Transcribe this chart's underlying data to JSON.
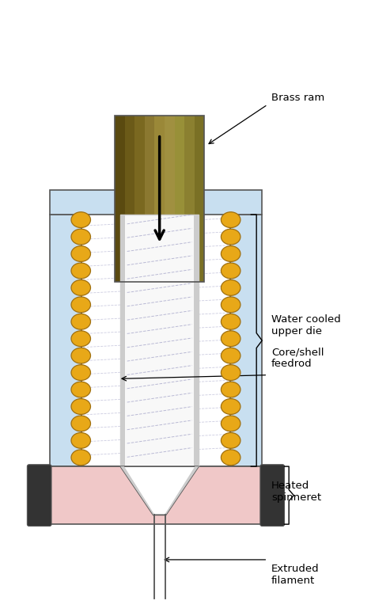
{
  "figure_width": 4.74,
  "figure_height": 7.73,
  "dpi": 100,
  "background_color": "#ffffff",
  "colors": {
    "light_blue": "#c8dff0",
    "brass_dark": "#6B5A1A",
    "brass_mid": "#8B7520",
    "brass_light": "#B09030",
    "gold_pellet": "#E8A818",
    "gold_pellet_edge": "#A07010",
    "dark_gray": "#333333",
    "pink": "#F0C8C8",
    "white": "#ffffff",
    "line_color": "#555555",
    "feedrod_white": "#f8f8f8",
    "feedrod_gray": "#cccccc",
    "dashed_line": "#aaaacc",
    "text_color": "#000000",
    "arrow_color": "#000000"
  },
  "labels": {
    "brass_ram": "Brass ram",
    "water_cooled": "Water cooled\nupper die",
    "core_shell": "Core/shell\nfeedrod",
    "heated_spinneret": "Heated\nspinneret",
    "extruded_filament": "Extruded\nfilament"
  }
}
